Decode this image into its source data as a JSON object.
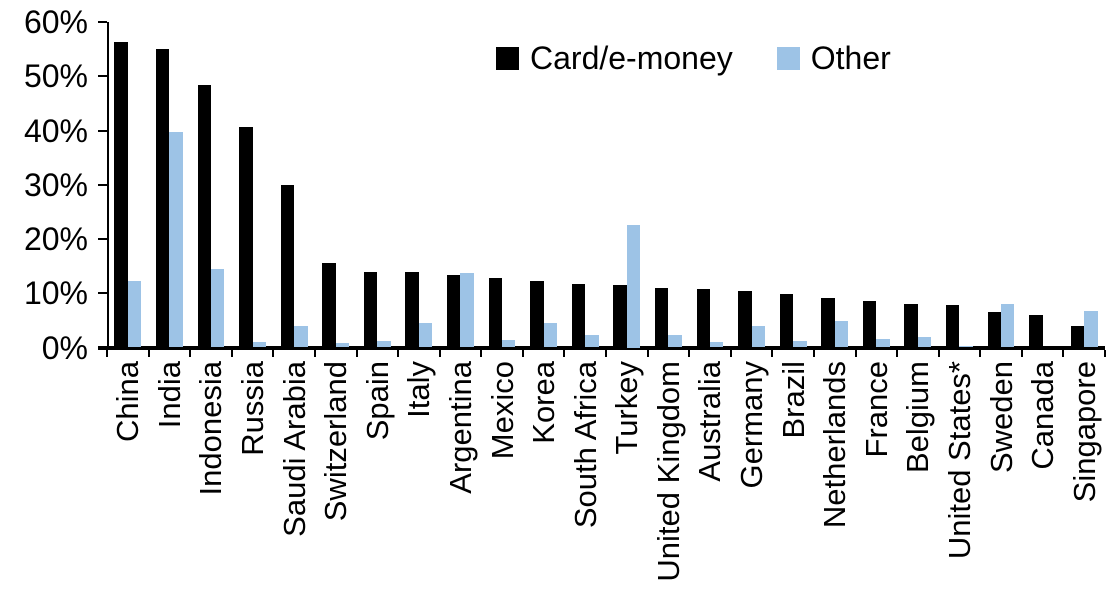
{
  "chart_data": {
    "type": "bar",
    "title": "",
    "xlabel": "",
    "ylabel": "",
    "ylim": [
      0,
      60
    ],
    "ytick_step": 10,
    "ytick_labels": [
      "0%",
      "10%",
      "20%",
      "30%",
      "40%",
      "50%",
      "60%"
    ],
    "grid": false,
    "legend_position": "top-center",
    "categories": [
      "China",
      "India",
      "Indonesia",
      "Russia",
      "Saudi Arabia",
      "Switzerland",
      "Spain",
      "Italy",
      "Argentina",
      "Mexico",
      "Korea",
      "South Africa",
      "Turkey",
      "United Kingdom",
      "Australia",
      "Germany",
      "Brazil",
      "Netherlands",
      "France",
      "Belgium",
      "United States*",
      "Sweden",
      "Canada",
      "Singapore"
    ],
    "series": [
      {
        "name": "Card/e-money",
        "color": "#000000",
        "values": [
          56.3,
          55.1,
          48.4,
          40.6,
          30.0,
          15.5,
          14.0,
          14.0,
          13.3,
          12.8,
          12.2,
          11.7,
          11.5,
          11.0,
          10.8,
          10.4,
          9.9,
          9.1,
          8.5,
          8.1,
          7.8,
          6.5,
          6.0,
          3.9
        ]
      },
      {
        "name": "Other",
        "color": "#9DC3E6",
        "values": [
          12.3,
          39.7,
          14.5,
          1.0,
          4.0,
          0.9,
          1.2,
          4.6,
          13.8,
          1.3,
          4.6,
          2.3,
          22.5,
          2.3,
          1.0,
          3.9,
          1.2,
          4.8,
          1.5,
          2.0,
          0.3,
          8.0,
          0.0,
          6.7
        ]
      }
    ]
  },
  "legend": {
    "items": [
      {
        "label": "Card/e-money",
        "color": "#000000"
      },
      {
        "label": "Other",
        "color": "#9DC3E6"
      }
    ]
  }
}
